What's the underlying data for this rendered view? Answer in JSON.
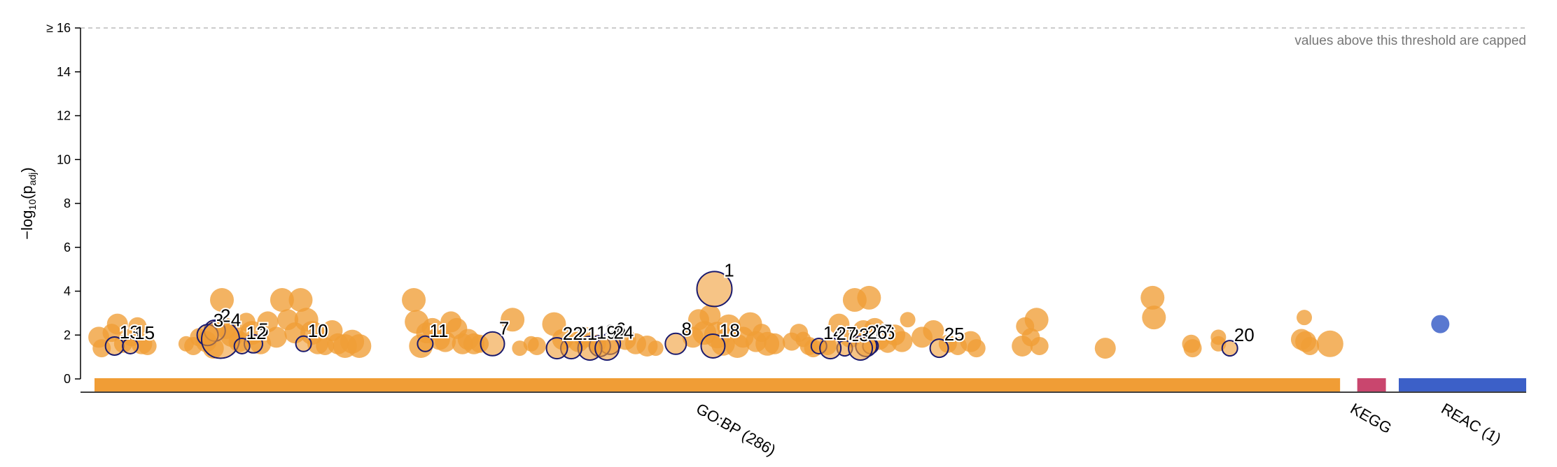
{
  "chart_data": {
    "type": "scatter",
    "title": "",
    "xlabel": "",
    "ylabel": "−log10(padj)",
    "ylabel_parts": {
      "prefix": "−log",
      "sub": "10",
      "mid": "(p",
      "sub2": "adj",
      "suffix": ")"
    },
    "ylim": [
      0,
      16
    ],
    "y_ticks": [
      0,
      2,
      4,
      6,
      8,
      10,
      12,
      14,
      16
    ],
    "y_tick_labels": [
      "0",
      "2",
      "4",
      "6",
      "8",
      "10",
      "12",
      "14",
      "≥ 16"
    ],
    "threshold": {
      "value": 16,
      "note": "values above this threshold are capped"
    },
    "xlim": [
      0,
      100
    ],
    "sources": [
      {
        "label": "GO:BP (286)",
        "start": 0,
        "end": 87,
        "color": "#f09d36"
      },
      {
        "label": "KEGG",
        "start": 88.2,
        "end": 90.2,
        "color": "#c9466e"
      },
      {
        "label": "REAC (1)",
        "start": 91.1,
        "end": 100,
        "color": "#3c60c8"
      }
    ],
    "annotated": [
      {
        "id": "1",
        "x": 43.3,
        "y": 4.1,
        "size": 11
      },
      {
        "id": "2",
        "x": 8.4,
        "y": 2.2,
        "size": 6
      },
      {
        "id": "3",
        "x": 7.9,
        "y": 2.0,
        "size": 6
      },
      {
        "id": "4",
        "x": 8.8,
        "y": 1.8,
        "size": 12
      },
      {
        "id": "5",
        "x": 11.1,
        "y": 1.6,
        "size": 5
      },
      {
        "id": "6",
        "x": 36.0,
        "y": 1.6,
        "size": 6
      },
      {
        "id": "7",
        "x": 27.8,
        "y": 1.6,
        "size": 7
      },
      {
        "id": "8",
        "x": 40.6,
        "y": 1.6,
        "size": 6
      },
      {
        "id": "9",
        "x": 35.3,
        "y": 1.5,
        "size": 6
      },
      {
        "id": "10",
        "x": 14.6,
        "y": 1.6,
        "size": 4
      },
      {
        "id": "11",
        "x": 23.1,
        "y": 1.6,
        "size": 4
      },
      {
        "id": "12",
        "x": 10.3,
        "y": 1.5,
        "size": 4
      },
      {
        "id": "13",
        "x": 1.4,
        "y": 1.5,
        "size": 5
      },
      {
        "id": "14",
        "x": 50.6,
        "y": 1.5,
        "size": 4
      },
      {
        "id": "15",
        "x": 2.5,
        "y": 1.5,
        "size": 4
      },
      {
        "id": "16",
        "x": 54.2,
        "y": 1.5,
        "size": 4
      },
      {
        "id": "17",
        "x": 53.9,
        "y": 1.5,
        "size": 6
      },
      {
        "id": "18",
        "x": 43.2,
        "y": 1.5,
        "size": 7
      },
      {
        "id": "19",
        "x": 34.6,
        "y": 1.4,
        "size": 7
      },
      {
        "id": "20",
        "x": 79.3,
        "y": 1.4,
        "size": 4
      },
      {
        "id": "21",
        "x": 33.3,
        "y": 1.4,
        "size": 6
      },
      {
        "id": "22",
        "x": 32.3,
        "y": 1.4,
        "size": 6
      },
      {
        "id": "23",
        "x": 52.4,
        "y": 1.4,
        "size": 4
      },
      {
        "id": "24",
        "x": 35.8,
        "y": 1.4,
        "size": 7
      },
      {
        "id": "25",
        "x": 59.0,
        "y": 1.4,
        "size": 5
      },
      {
        "id": "26",
        "x": 53.5,
        "y": 1.4,
        "size": 7
      },
      {
        "id": "27",
        "x": 51.4,
        "y": 1.4,
        "size": 6
      }
    ],
    "points": [
      [
        0.3,
        1.9,
        6
      ],
      [
        0.5,
        1.4,
        5
      ],
      [
        1.2,
        2.1,
        5
      ],
      [
        1.6,
        2.5,
        6
      ],
      [
        2.0,
        1.6,
        5
      ],
      [
        2.6,
        1.9,
        5
      ],
      [
        3.0,
        2.4,
        5
      ],
      [
        3.3,
        1.6,
        6
      ],
      [
        3.7,
        1.5,
        5
      ],
      [
        6.4,
        1.6,
        4
      ],
      [
        6.9,
        1.5,
        5
      ],
      [
        7.3,
        1.9,
        5
      ],
      [
        7.8,
        1.7,
        6
      ],
      [
        8.3,
        1.4,
        6
      ],
      [
        8.9,
        3.6,
        7
      ],
      [
        9.2,
        2.3,
        6
      ],
      [
        9.6,
        2.0,
        7
      ],
      [
        10.1,
        1.7,
        6
      ],
      [
        10.6,
        2.6,
        5
      ],
      [
        11.0,
        2.1,
        7
      ],
      [
        11.6,
        1.6,
        6
      ],
      [
        12.1,
        2.6,
        6
      ],
      [
        12.7,
        1.9,
        6
      ],
      [
        13.1,
        3.6,
        7
      ],
      [
        13.5,
        2.7,
        6
      ],
      [
        14.0,
        2.1,
        6
      ],
      [
        14.4,
        3.6,
        7
      ],
      [
        14.8,
        2.7,
        7
      ],
      [
        15.2,
        2.1,
        7
      ],
      [
        15.6,
        1.6,
        6
      ],
      [
        16.1,
        1.5,
        5
      ],
      [
        16.6,
        2.2,
        6
      ],
      [
        17.0,
        1.6,
        6
      ],
      [
        17.5,
        1.5,
        7
      ],
      [
        18.0,
        1.7,
        7
      ],
      [
        18.5,
        1.5,
        7
      ],
      [
        22.3,
        3.6,
        7
      ],
      [
        22.5,
        2.6,
        7
      ],
      [
        22.8,
        1.5,
        7
      ],
      [
        23.2,
        2.1,
        6
      ],
      [
        23.6,
        2.3,
        6
      ],
      [
        24.1,
        1.8,
        6
      ],
      [
        24.5,
        1.7,
        6
      ],
      [
        24.9,
        2.6,
        6
      ],
      [
        25.3,
        2.3,
        6
      ],
      [
        25.7,
        1.6,
        6
      ],
      [
        26.1,
        1.8,
        6
      ],
      [
        26.5,
        1.6,
        6
      ],
      [
        26.9,
        1.6,
        5
      ],
      [
        29.2,
        2.7,
        7
      ],
      [
        29.7,
        1.4,
        4
      ],
      [
        30.5,
        1.6,
        4
      ],
      [
        30.9,
        1.5,
        5
      ],
      [
        32.1,
        2.5,
        7
      ],
      [
        32.7,
        1.8,
        6
      ],
      [
        33.8,
        1.7,
        6
      ],
      [
        34.2,
        1.9,
        6
      ],
      [
        35.1,
        1.6,
        5
      ],
      [
        37.1,
        1.8,
        6
      ],
      [
        37.8,
        1.6,
        6
      ],
      [
        38.6,
        1.5,
        6
      ],
      [
        39.2,
        1.4,
        4
      ],
      [
        41.8,
        1.9,
        6
      ],
      [
        42.2,
        2.7,
        6
      ],
      [
        42.6,
        2.1,
        7
      ],
      [
        43.0,
        2.9,
        6
      ],
      [
        43.5,
        2.0,
        8
      ],
      [
        43.9,
        1.6,
        7
      ],
      [
        44.3,
        2.4,
        7
      ],
      [
        44.9,
        1.5,
        7
      ],
      [
        45.3,
        1.9,
        6
      ],
      [
        45.8,
        2.5,
        7
      ],
      [
        46.2,
        1.7,
        6
      ],
      [
        46.6,
        2.1,
        5
      ],
      [
        47.0,
        1.6,
        7
      ],
      [
        47.5,
        1.6,
        6
      ],
      [
        48.7,
        1.7,
        5
      ],
      [
        49.2,
        2.1,
        5
      ],
      [
        49.5,
        1.8,
        4
      ],
      [
        49.9,
        1.5,
        5
      ],
      [
        50.2,
        1.4,
        5
      ],
      [
        51.2,
        1.5,
        5
      ],
      [
        52.0,
        2.5,
        6
      ],
      [
        52.8,
        1.9,
        6
      ],
      [
        53.1,
        3.6,
        7
      ],
      [
        53.7,
        2.2,
        6
      ],
      [
        54.1,
        3.7,
        7
      ],
      [
        54.5,
        2.3,
        6
      ],
      [
        54.8,
        1.8,
        6
      ],
      [
        55.4,
        1.6,
        5
      ],
      [
        55.9,
        2.0,
        6
      ],
      [
        56.4,
        1.7,
        6
      ],
      [
        56.8,
        2.7,
        4
      ],
      [
        57.8,
        1.9,
        6
      ],
      [
        58.6,
        2.2,
        6
      ],
      [
        59.6,
        1.6,
        5
      ],
      [
        60.3,
        1.5,
        5
      ],
      [
        61.2,
        1.7,
        6
      ],
      [
        61.6,
        1.4,
        5
      ],
      [
        64.8,
        1.5,
        6
      ],
      [
        65.0,
        2.4,
        5
      ],
      [
        65.4,
        1.9,
        5
      ],
      [
        65.8,
        2.7,
        7
      ],
      [
        66.0,
        1.5,
        5
      ],
      [
        70.6,
        1.4,
        6
      ],
      [
        73.9,
        3.7,
        7
      ],
      [
        74.0,
        2.8,
        7
      ],
      [
        76.6,
        1.6,
        5
      ],
      [
        76.7,
        1.4,
        5
      ],
      [
        78.5,
        1.9,
        4
      ],
      [
        78.5,
        1.6,
        4
      ],
      [
        84.3,
        1.8,
        6
      ],
      [
        84.5,
        2.8,
        4
      ],
      [
        84.6,
        1.7,
        6
      ],
      [
        84.9,
        1.5,
        5
      ],
      [
        86.3,
        1.6,
        8
      ]
    ],
    "reac_points": [
      [
        94.0,
        2.5,
        5
      ]
    ]
  }
}
